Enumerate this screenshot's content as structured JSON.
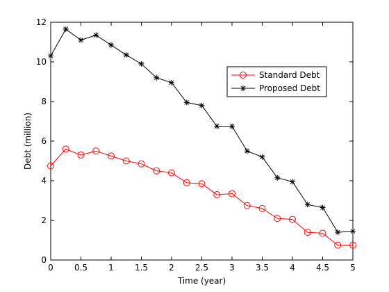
{
  "chart_data": {
    "type": "line",
    "xlabel": "Time (year)",
    "ylabel": "Debt (million)",
    "xlim": [
      0,
      5
    ],
    "ylim": [
      0,
      12
    ],
    "xticks": [
      0,
      0.5,
      1,
      1.5,
      2,
      2.5,
      3,
      3.5,
      4,
      4.5,
      5
    ],
    "xtick_labels": [
      "0",
      "0.5",
      "1",
      "1.5",
      "2",
      "2.5",
      "3",
      "3.5",
      "4",
      "4.5",
      "5"
    ],
    "yticks": [
      0,
      2,
      4,
      6,
      8,
      10,
      12
    ],
    "ytick_labels": [
      "0",
      "2",
      "4",
      "6",
      "8",
      "10",
      "12"
    ],
    "grid": false,
    "legend_position": "upper-right",
    "x": [
      0,
      0.25,
      0.5,
      0.75,
      1,
      1.25,
      1.5,
      1.75,
      2,
      2.25,
      2.5,
      2.75,
      3,
      3.25,
      3.5,
      3.75,
      4,
      4.25,
      4.5,
      4.75,
      5
    ],
    "series": [
      {
        "name": "Standard Debt",
        "color": "#ff0000",
        "marker": "circle",
        "values": [
          4.75,
          5.6,
          5.3,
          5.5,
          5.25,
          5.0,
          4.85,
          4.5,
          4.4,
          3.9,
          3.85,
          3.3,
          3.35,
          2.75,
          2.6,
          2.1,
          2.05,
          1.4,
          1.35,
          0.75,
          0.75
        ]
      },
      {
        "name": "Proposed Debt",
        "color": "#000000",
        "marker": "star",
        "values": [
          10.3,
          11.65,
          11.1,
          11.35,
          10.85,
          10.35,
          9.9,
          9.2,
          8.95,
          7.95,
          7.8,
          6.75,
          6.75,
          5.5,
          5.2,
          4.15,
          3.95,
          2.8,
          2.65,
          1.4,
          1.45
        ]
      }
    ]
  }
}
